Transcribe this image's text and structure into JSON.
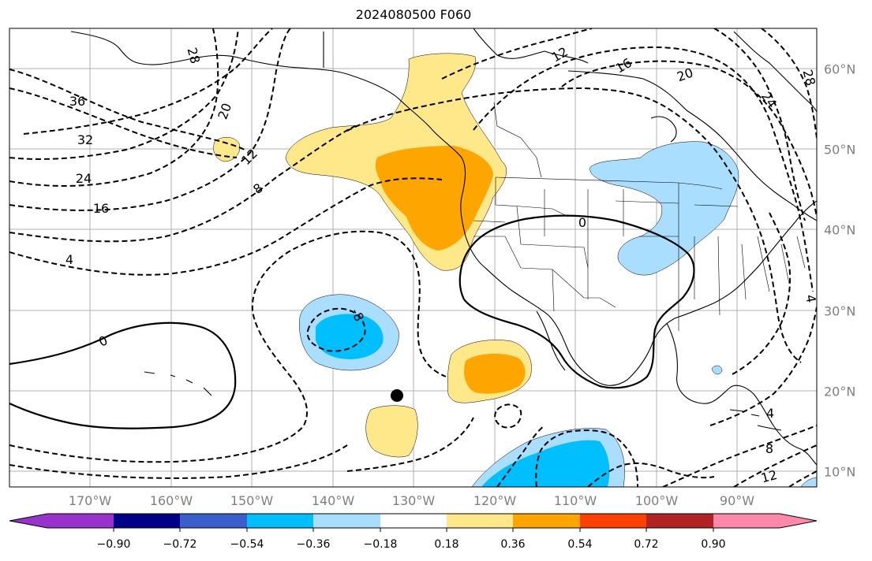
{
  "title": "2024080500 F060",
  "map": {
    "lon_labels": [
      "170°W",
      "160°W",
      "150°W",
      "140°W",
      "130°W",
      "120°W",
      "110°W",
      "100°W",
      "90°W"
    ],
    "lat_labels": [
      "60°N",
      "50°N",
      "40°N",
      "30°N",
      "20°N",
      "10°N"
    ],
    "contour_labels": [
      "36",
      "32",
      "28",
      "24",
      "20",
      "16",
      "12",
      "8",
      "4",
      "0",
      "-4",
      "-8",
      "12",
      "16",
      "20",
      "24",
      "28",
      "0",
      "8",
      "4",
      "8",
      "12"
    ],
    "marker": "storm-center-dot"
  },
  "colorbar": {
    "tick_labels": [
      "−0.90",
      "−0.72",
      "−0.54",
      "−0.36",
      "−0.18",
      "0.18",
      "0.36",
      "0.54",
      "0.72",
      "0.90"
    ],
    "colors": [
      "#9932cc",
      "#00008b",
      "#3a5fcd",
      "#00bfff",
      "#aadeff",
      "#ffffff",
      "#ffe88a",
      "#ffa500",
      "#ff4000",
      "#b22222",
      "#ff88aa"
    ]
  }
}
